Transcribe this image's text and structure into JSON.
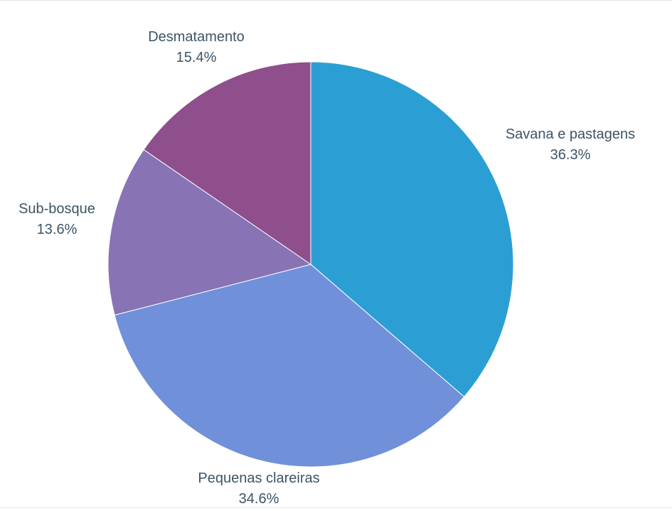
{
  "chart_data": {
    "type": "pie",
    "title": "",
    "slices": [
      {
        "label": "Savana e pastagens",
        "value": 36.3,
        "value_label": "36.3%",
        "color": "#2b9fd4"
      },
      {
        "label": "Pequenas clareiras",
        "value": 34.6,
        "value_label": "34.6%",
        "color": "#7190da"
      },
      {
        "label": "Sub-bosque",
        "value": 13.6,
        "value_label": "13.6%",
        "color": "#8873b5"
      },
      {
        "label": "Desmatamento",
        "value": 15.4,
        "value_label": "15.4%",
        "color": "#8e4f8c"
      }
    ],
    "start": "12 o'clock",
    "direction": "clockwise",
    "legend": "none",
    "label_color": "#3d5566"
  }
}
